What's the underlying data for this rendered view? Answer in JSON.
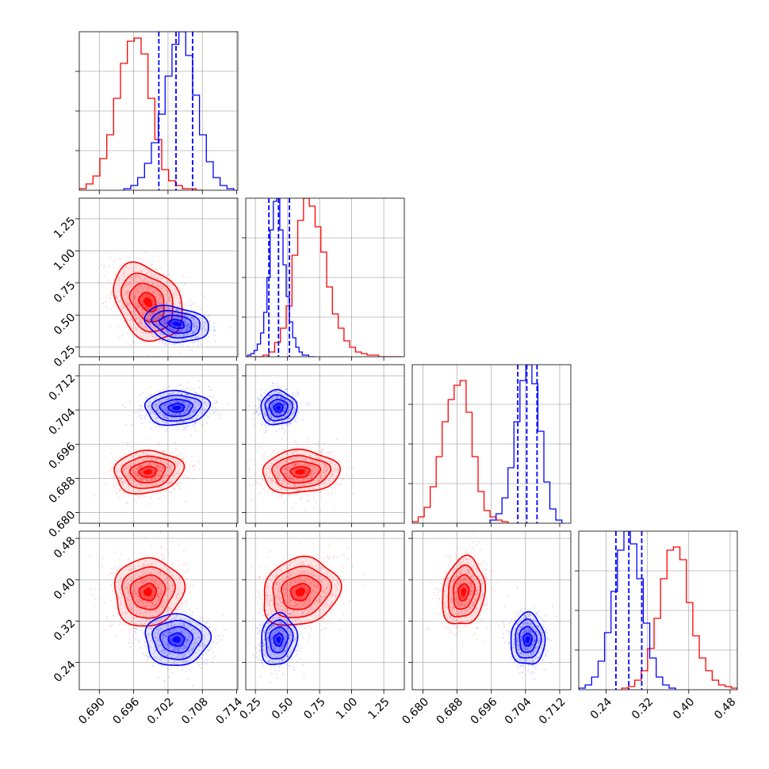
{
  "chart_data": {
    "type": "corner",
    "grid": true,
    "colors": {
      "series_1": "#ff0000",
      "series_2": "#0000ff"
    },
    "parameters": [
      {
        "range": [
          0.6865,
          0.7142
        ],
        "ticks": [
          0.69,
          0.696,
          0.702,
          0.708,
          0.714
        ],
        "tick_labels": [
          "0.690",
          "0.696",
          "0.702",
          "0.708",
          "0.714"
        ]
      },
      {
        "range": [
          0.175,
          1.41
        ],
        "ticks": [
          0.25,
          0.5,
          0.75,
          1.0,
          1.25
        ],
        "tick_labels": [
          "0.25",
          "0.50",
          "0.75",
          "1.00",
          "1.25"
        ]
      },
      {
        "range": [
          0.6775,
          0.7146
        ],
        "ticks": [
          0.68,
          0.688,
          0.696,
          0.704,
          0.712
        ],
        "tick_labels": [
          "0.680",
          "0.688",
          "0.696",
          "0.704",
          "0.712"
        ]
      },
      {
        "range": [
          0.187,
          0.494
        ],
        "ticks": [
          0.24,
          0.32,
          0.4,
          0.48
        ],
        "tick_labels": [
          "0.24",
          "0.32",
          "0.40",
          "0.48"
        ]
      }
    ],
    "series": [
      {
        "color": "#ff0000",
        "means": [
          0.6985,
          0.6,
          0.6895,
          0.376
        ],
        "sds": [
          0.003,
          0.15,
          0.0025,
          0.033
        ],
        "correlations": {
          "0-1": -0.3,
          "0-2": 0.1,
          "0-3": 0.05,
          "1-2": 0.05,
          "1-3": 0.15,
          "2-3": 0.15
        },
        "histograms": [
          {
            "edges": [
              0.6865,
              0.6877,
              0.6889,
              0.6901,
              0.6913,
              0.6925,
              0.6937,
              0.6949,
              0.6961,
              0.6973,
              0.6985,
              0.6997,
              0.7009,
              0.7021,
              0.7033,
              0.7045,
              0.7057,
              0.7069,
              0.7081
            ],
            "counts": [
              1,
              4,
              9,
              20,
              35,
              58,
              80,
              94,
              96,
              86,
              58,
              32,
              13,
              6,
              3,
              1,
              1,
              0
            ]
          },
          {
            "edges": [
              0.175,
              0.22,
              0.265,
              0.31,
              0.355,
              0.4,
              0.445,
              0.49,
              0.535,
              0.58,
              0.625,
              0.67,
              0.715,
              0.76,
              0.805,
              0.85,
              0.895,
              0.94,
              0.985,
              1.03,
              1.075,
              1.12,
              1.165,
              1.21,
              1.255,
              1.3,
              1.345,
              1.39
            ],
            "counts": [
              0,
              0,
              0,
              1,
              3,
              9,
              18,
              32,
              64,
              86,
              100,
              95,
              82,
              66,
              44,
              27,
              18,
              10,
              6,
              3,
              2,
              1,
              1,
              0,
              0,
              0,
              0
            ]
          },
          {
            "edges": [
              0.6775,
              0.6789,
              0.6803,
              0.6817,
              0.6831,
              0.6845,
              0.6859,
              0.6873,
              0.6887,
              0.6901,
              0.6915,
              0.6929,
              0.6943,
              0.6957,
              0.6971,
              0.6985,
              0.6999
            ],
            "counts": [
              1,
              4,
              10,
              23,
              42,
              64,
              78,
              87,
              90,
              70,
              42,
              20,
              8,
              4,
              2,
              1
            ]
          },
          {
            "edges": [
              0.2704,
              0.2829,
              0.2954,
              0.3079,
              0.3204,
              0.3329,
              0.3454,
              0.3579,
              0.3704,
              0.3829,
              0.3954,
              0.4079,
              0.4204,
              0.4329,
              0.4454,
              0.4579,
              0.4704,
              0.4829,
              0.494
            ],
            "counts": [
              1,
              2,
              6,
              12,
              26,
              45,
              70,
              88,
              90,
              82,
              55,
              34,
              20,
              12,
              6,
              3,
              2,
              1
            ]
          }
        ]
      },
      {
        "color": "#0000ff",
        "means": [
          0.7035,
          0.43,
          0.7045,
          0.284
        ],
        "sds": [
          0.0028,
          0.07,
          0.002,
          0.025
        ],
        "correlations": {
          "0-1": -0.25,
          "0-2": 0.05,
          "0-3": 0.0,
          "1-2": 0.0,
          "1-3": 0.1,
          "2-3": 0.0
        },
        "histograms": [
          {
            "edges": [
              0.6943,
              0.6955,
              0.6967,
              0.6979,
              0.6991,
              0.7003,
              0.7015,
              0.7027,
              0.7039,
              0.7051,
              0.7063,
              0.7075,
              0.7087,
              0.7099,
              0.7111,
              0.7123,
              0.7135
            ],
            "counts": [
              1,
              3,
              8,
              17,
              30,
              48,
              72,
              92,
              100,
              85,
              60,
              35,
              18,
              8,
              3,
              1
            ]
          },
          {
            "edges": [
              0.19,
              0.215,
              0.24,
              0.265,
              0.29,
              0.315,
              0.34,
              0.365,
              0.39,
              0.415,
              0.44,
              0.465,
              0.49,
              0.515,
              0.54,
              0.565,
              0.59,
              0.615,
              0.64,
              0.665,
              0.69,
              0.715
            ],
            "counts": [
              1,
              2,
              4,
              8,
              15,
              28,
              50,
              80,
              98,
              100,
              80,
              58,
              38,
              22,
              12,
              6,
              3,
              1,
              1,
              0,
              0
            ]
          },
          {
            "edges": [
              0.6957,
              0.6971,
              0.6985,
              0.6999,
              0.7013,
              0.7027,
              0.7041,
              0.7055,
              0.7069,
              0.7083,
              0.7097,
              0.7111,
              0.7125
            ],
            "counts": [
              2,
              6,
              16,
              35,
              64,
              90,
              100,
              88,
              58,
              26,
              9,
              2
            ]
          },
          {
            "edges": [
              0.187,
              0.1995,
              0.212,
              0.2245,
              0.237,
              0.2495,
              0.262,
              0.2745,
              0.287,
              0.2995,
              0.312,
              0.3245,
              0.337,
              0.3495,
              0.362,
              0.3745
            ],
            "counts": [
              1,
              3,
              8,
              18,
              36,
              62,
              88,
              100,
              92,
              70,
              42,
              20,
              8,
              3,
              1
            ]
          }
        ],
        "quantile_lines": [
          [
            0.7004,
            0.7034,
            0.7063
          ],
          [
            0.355,
            0.43,
            0.515
          ],
          [
            0.7022,
            0.7043,
            0.7067
          ],
          [
            0.259,
            0.284,
            0.309
          ]
        ]
      }
    ],
    "contour_levels_sigma": [
      0.5,
      1.0,
      1.5,
      2.0
    ]
  }
}
